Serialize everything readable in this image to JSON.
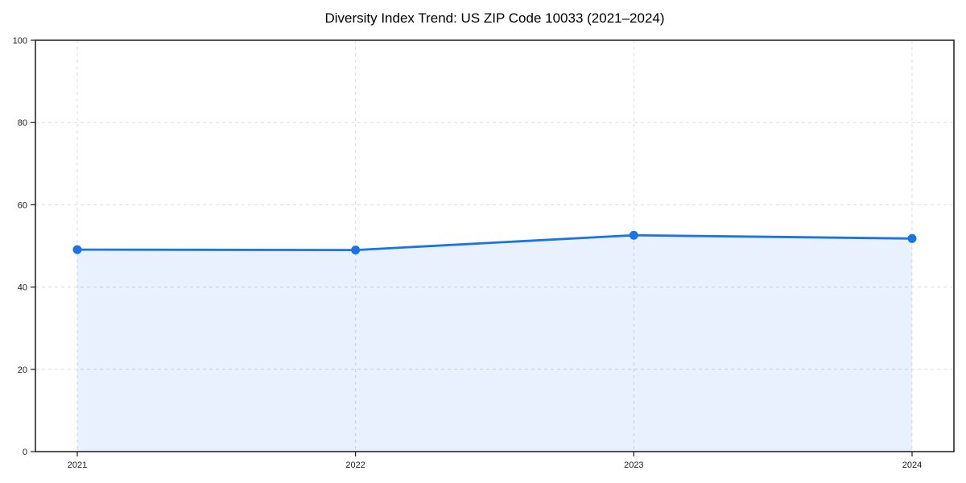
{
  "page": {
    "background": "#ffffff"
  },
  "chart_data": {
    "type": "area",
    "title": "Diversity Index Trend: US ZIP Code 10033 (2021–2024)",
    "categories": [
      "2021",
      "2022",
      "2023",
      "2024"
    ],
    "values": [
      49.1,
      49.0,
      52.6,
      51.8
    ],
    "series": [
      {
        "name": "Diversity Index",
        "values": [
          49.1,
          49.0,
          52.6,
          51.8
        ]
      }
    ],
    "xlabel": "",
    "ylabel": "",
    "ylim": [
      0,
      100
    ],
    "yticks": [
      0,
      20,
      40,
      60,
      80,
      100
    ],
    "grid": "dashed, horizontal and vertical",
    "legend": "none",
    "marker": "filled-circle",
    "colors": {
      "line": "#1a73e8",
      "marker": "#1a73e8",
      "area_fill": "rgba(26,115,232,0.10)",
      "grid": "#dcdcdc",
      "axis": "#1a1a1a",
      "tick_label": "#1a1a1a",
      "title": "#000000"
    }
  }
}
